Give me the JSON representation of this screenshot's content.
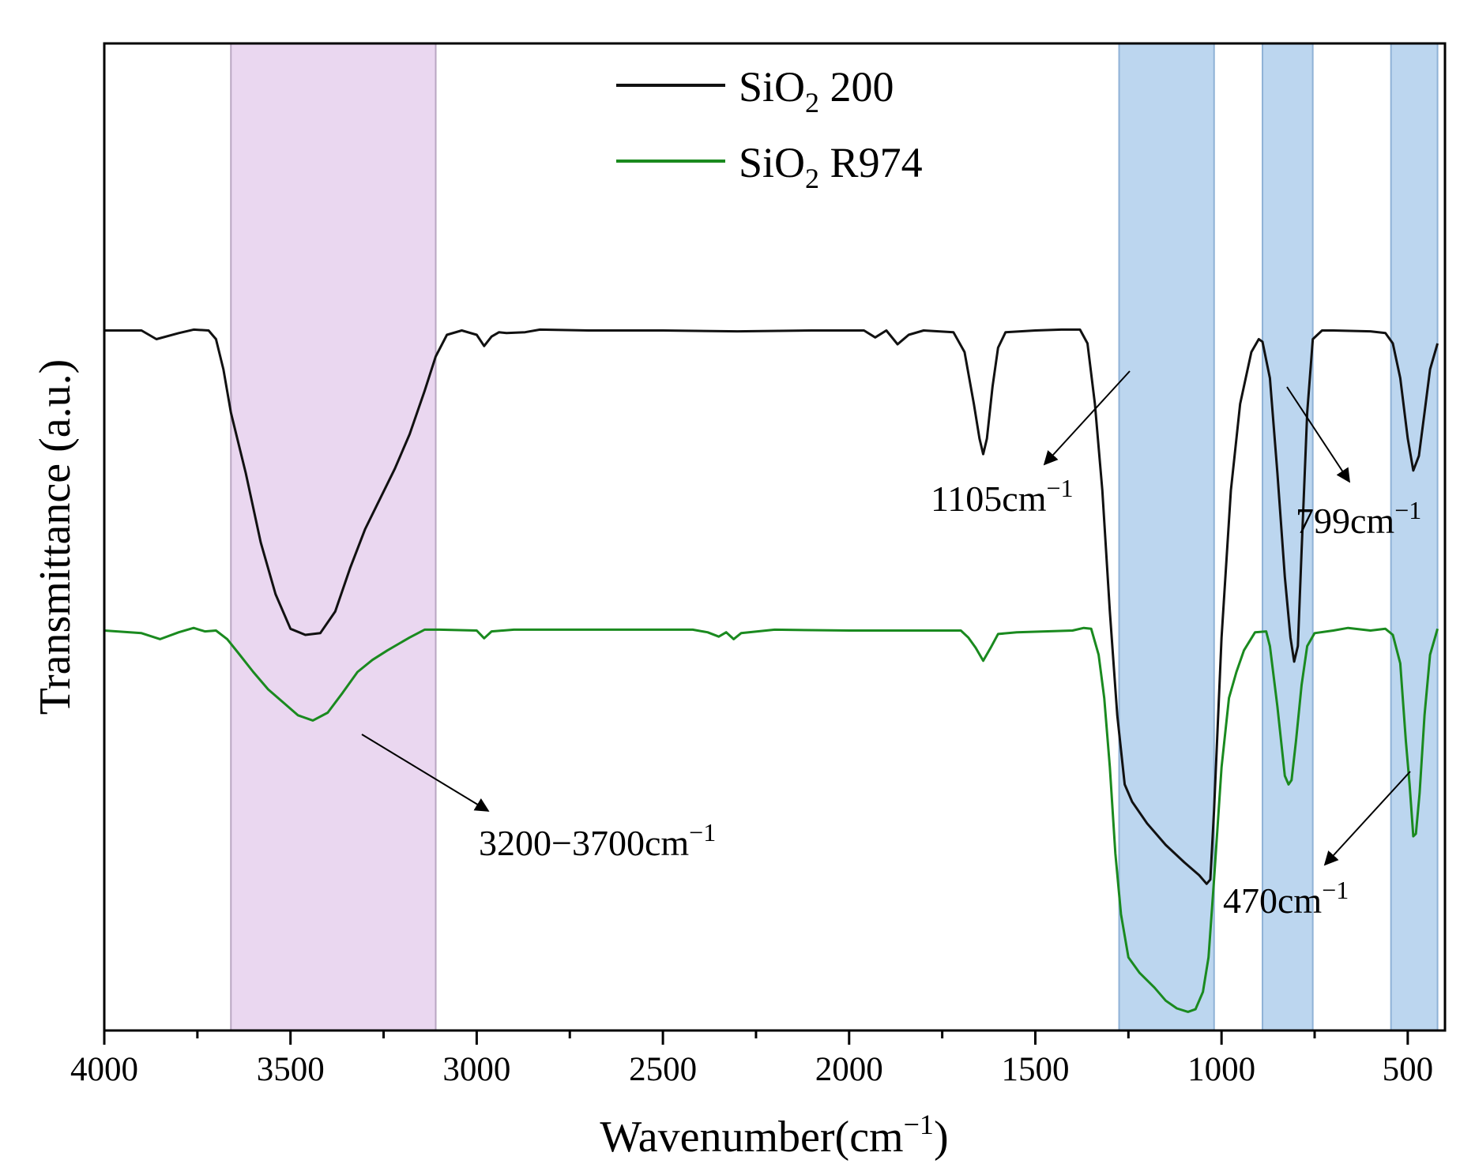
{
  "chart_data": {
    "type": "line",
    "title": "",
    "xlabel": "Wavenumber(cm−1)",
    "xlabel_main": "Wavenumber(cm",
    "xlabel_sup": "−1",
    "xlabel_close": ")",
    "ylabel": "Transmittance (a.u.)",
    "xlim": [
      4000,
      400
    ],
    "ylim": [
      0,
      100
    ],
    "x_ticks": [
      4000,
      3500,
      3000,
      2500,
      2000,
      1500,
      1000,
      500
    ],
    "x_tick_labels": [
      "4000",
      "3500",
      "3000",
      "2500",
      "2000",
      "1500",
      "1000",
      "500"
    ],
    "y_ticks_visible": false,
    "grid": false,
    "legend_position": "top-center",
    "bands": [
      {
        "from": 3660,
        "to": 3110,
        "color": "#ead7f0",
        "edge": "#b9a6c2"
      },
      {
        "from": 1275,
        "to": 1020,
        "color": "#bcd6ef",
        "edge": "#8fb2d6"
      },
      {
        "from": 890,
        "to": 755,
        "color": "#bcd6ef",
        "edge": "#8fb2d6"
      },
      {
        "from": 545,
        "to": 420,
        "color": "#bcd6ef",
        "edge": "#8fb2d6"
      }
    ],
    "series": [
      {
        "name": "SiO2 200",
        "legend_base": "SiO",
        "legend_sub": "2",
        "legend_rest": " 200",
        "color": "#111111",
        "points": [
          [
            4000,
            80.5
          ],
          [
            3900,
            80.5
          ],
          [
            3860,
            79.5
          ],
          [
            3800,
            80.2
          ],
          [
            3760,
            80.6
          ],
          [
            3720,
            80.5
          ],
          [
            3700,
            79.5
          ],
          [
            3680,
            76
          ],
          [
            3660,
            71
          ],
          [
            3620,
            64
          ],
          [
            3580,
            56
          ],
          [
            3540,
            50
          ],
          [
            3500,
            46
          ],
          [
            3460,
            45.3
          ],
          [
            3420,
            45.5
          ],
          [
            3380,
            48
          ],
          [
            3340,
            53
          ],
          [
            3300,
            57.5
          ],
          [
            3260,
            61
          ],
          [
            3220,
            64.5
          ],
          [
            3180,
            68.5
          ],
          [
            3140,
            73.5
          ],
          [
            3110,
            77.5
          ],
          [
            3080,
            80
          ],
          [
            3040,
            80.5
          ],
          [
            3000,
            80
          ],
          [
            2980,
            78.7
          ],
          [
            2960,
            79.8
          ],
          [
            2940,
            80.3
          ],
          [
            2920,
            80.2
          ],
          [
            2870,
            80.3
          ],
          [
            2830,
            80.6
          ],
          [
            2700,
            80.5
          ],
          [
            2500,
            80.5
          ],
          [
            2300,
            80.4
          ],
          [
            2100,
            80.5
          ],
          [
            1960,
            80.5
          ],
          [
            1930,
            79.7
          ],
          [
            1900,
            80.5
          ],
          [
            1870,
            78.9
          ],
          [
            1840,
            80
          ],
          [
            1800,
            80.5
          ],
          [
            1720,
            80.3
          ],
          [
            1690,
            78
          ],
          [
            1665,
            72
          ],
          [
            1650,
            68
          ],
          [
            1640,
            66.2
          ],
          [
            1630,
            68
          ],
          [
            1615,
            74
          ],
          [
            1600,
            78.5
          ],
          [
            1580,
            80.3
          ],
          [
            1500,
            80.5
          ],
          [
            1430,
            80.6
          ],
          [
            1380,
            80.6
          ],
          [
            1360,
            79
          ],
          [
            1340,
            72
          ],
          [
            1320,
            62
          ],
          [
            1300,
            48
          ],
          [
            1280,
            36
          ],
          [
            1260,
            28
          ],
          [
            1240,
            26
          ],
          [
            1200,
            23.5
          ],
          [
            1150,
            21
          ],
          [
            1100,
            19
          ],
          [
            1060,
            17.5
          ],
          [
            1040,
            16.5
          ],
          [
            1030,
            17
          ],
          [
            1020,
            25
          ],
          [
            1000,
            45
          ],
          [
            975,
            62
          ],
          [
            950,
            72
          ],
          [
            920,
            78
          ],
          [
            900,
            79.5
          ],
          [
            890,
            79.2
          ],
          [
            870,
            75
          ],
          [
            850,
            64
          ],
          [
            830,
            52
          ],
          [
            815,
            45
          ],
          [
            805,
            42.2
          ],
          [
            795,
            44
          ],
          [
            785,
            55
          ],
          [
            770,
            71
          ],
          [
            755,
            79.5
          ],
          [
            730,
            80.5
          ],
          [
            700,
            80.5
          ],
          [
            600,
            80.4
          ],
          [
            560,
            80.2
          ],
          [
            540,
            79
          ],
          [
            520,
            75
          ],
          [
            500,
            68
          ],
          [
            485,
            64.3
          ],
          [
            470,
            66
          ],
          [
            455,
            71
          ],
          [
            440,
            76
          ],
          [
            420,
            79
          ]
        ]
      },
      {
        "name": "SiO2 R974",
        "legend_base": "SiO",
        "legend_sub": "2",
        "legend_rest": " R974",
        "color": "#1a8a1f",
        "points": [
          [
            4000,
            45.8
          ],
          [
            3900,
            45.5
          ],
          [
            3850,
            44.8
          ],
          [
            3800,
            45.6
          ],
          [
            3760,
            46.1
          ],
          [
            3730,
            45.7
          ],
          [
            3700,
            45.8
          ],
          [
            3670,
            44.8
          ],
          [
            3640,
            43.2
          ],
          [
            3600,
            41
          ],
          [
            3560,
            39
          ],
          [
            3520,
            37.5
          ],
          [
            3480,
            36
          ],
          [
            3440,
            35.4
          ],
          [
            3400,
            36.3
          ],
          [
            3360,
            38.6
          ],
          [
            3320,
            41
          ],
          [
            3280,
            42.4
          ],
          [
            3240,
            43.5
          ],
          [
            3180,
            45
          ],
          [
            3140,
            45.9
          ],
          [
            3100,
            45.9
          ],
          [
            3000,
            45.8
          ],
          [
            2980,
            44.9
          ],
          [
            2960,
            45.7
          ],
          [
            2900,
            45.9
          ],
          [
            2700,
            45.9
          ],
          [
            2500,
            45.9
          ],
          [
            2420,
            45.9
          ],
          [
            2380,
            45.6
          ],
          [
            2350,
            45.1
          ],
          [
            2330,
            45.6
          ],
          [
            2310,
            44.8
          ],
          [
            2290,
            45.5
          ],
          [
            2200,
            45.9
          ],
          [
            2000,
            45.8
          ],
          [
            1800,
            45.8
          ],
          [
            1700,
            45.8
          ],
          [
            1680,
            45
          ],
          [
            1660,
            43.8
          ],
          [
            1640,
            42.3
          ],
          [
            1620,
            43.8
          ],
          [
            1600,
            45.4
          ],
          [
            1550,
            45.6
          ],
          [
            1400,
            45.8
          ],
          [
            1370,
            46.1
          ],
          [
            1350,
            46
          ],
          [
            1330,
            43
          ],
          [
            1315,
            38
          ],
          [
            1300,
            30
          ],
          [
            1285,
            20
          ],
          [
            1270,
            13
          ],
          [
            1250,
            8
          ],
          [
            1220,
            6.2
          ],
          [
            1180,
            4.5
          ],
          [
            1150,
            3
          ],
          [
            1120,
            2.1
          ],
          [
            1090,
            1.7
          ],
          [
            1070,
            2
          ],
          [
            1050,
            4
          ],
          [
            1035,
            8
          ],
          [
            1020,
            17
          ],
          [
            1000,
            30
          ],
          [
            980,
            38
          ],
          [
            960,
            41
          ],
          [
            940,
            43.5
          ],
          [
            910,
            45.6
          ],
          [
            880,
            45.7
          ],
          [
            870,
            44
          ],
          [
            850,
            37
          ],
          [
            830,
            29
          ],
          [
            820,
            28
          ],
          [
            812,
            28.5
          ],
          [
            800,
            33
          ],
          [
            785,
            39.5
          ],
          [
            770,
            44
          ],
          [
            750,
            45.5
          ],
          [
            700,
            45.8
          ],
          [
            660,
            46.1
          ],
          [
            600,
            45.8
          ],
          [
            560,
            46
          ],
          [
            540,
            45.3
          ],
          [
            520,
            42
          ],
          [
            505,
            33
          ],
          [
            495,
            28
          ],
          [
            485,
            22
          ],
          [
            478,
            22.3
          ],
          [
            468,
            27
          ],
          [
            455,
            36
          ],
          [
            440,
            43
          ],
          [
            420,
            46
          ]
        ]
      }
    ],
    "annotations": [
      {
        "text": "3200−3700cm",
        "sup": "−1",
        "x": 3025,
        "y": 20
      },
      {
        "text": "1105cm",
        "sup": "−1",
        "x": 1560,
        "y": 55
      },
      {
        "text": "799cm",
        "sup": "−1",
        "x": 800,
        "y": 52
      },
      {
        "text": "470cm",
        "sup": "−1",
        "x": 860,
        "y": 12.5
      }
    ]
  }
}
